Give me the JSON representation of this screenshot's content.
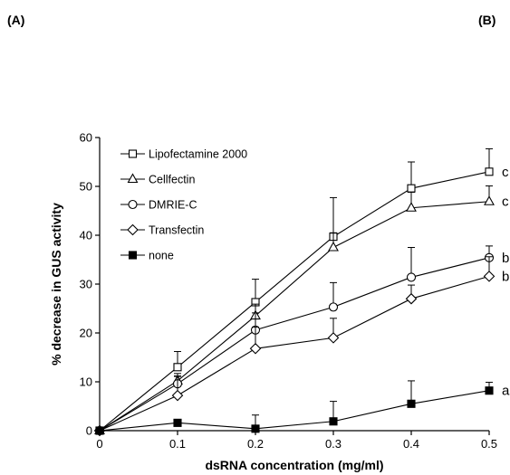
{
  "panels": {
    "left": "(A)",
    "right": "(B)"
  },
  "chart_data": {
    "type": "line",
    "title": "",
    "xlabel": "dsRNA concentration (mg/ml)",
    "ylabel": "% decrease in GUS activity",
    "x": [
      0,
      0.1,
      0.2,
      0.3,
      0.4,
      0.5
    ],
    "xlim": [
      0,
      0.5
    ],
    "ylim": [
      0,
      60
    ],
    "x_ticks": [
      "0",
      "0.1",
      "0.2",
      "0.3",
      "0.4",
      "0.5"
    ],
    "y_ticks": [
      "0",
      "10",
      "20",
      "30",
      "40",
      "50",
      "60"
    ],
    "grid": false,
    "legend_position": "top-left",
    "series": [
      {
        "name": "Lipofectamine 2000",
        "marker": "square-open",
        "color": "#000000",
        "values": [
          0,
          13,
          26.3,
          39.7,
          49.6,
          53
        ],
        "errors": [
          0,
          3.2,
          4.7,
          8,
          5.4,
          4.7
        ],
        "sig": "c"
      },
      {
        "name": "Cellfectin",
        "marker": "triangle-open",
        "color": "#000000",
        "values": [
          0,
          10.2,
          23.5,
          37.5,
          45.6,
          46.9
        ],
        "errors": [
          0,
          1.5,
          2.4,
          3,
          3.2,
          3.2
        ],
        "sig": "c"
      },
      {
        "name": "DMRIE-C",
        "marker": "circle-open",
        "color": "#000000",
        "values": [
          0,
          9.6,
          20.6,
          25.3,
          31.4,
          35.4
        ],
        "errors": [
          0,
          1.5,
          3.5,
          5,
          6.1,
          2.4
        ],
        "sig": "b"
      },
      {
        "name": "Transfectin",
        "marker": "diamond-open",
        "color": "#000000",
        "values": [
          0,
          7.2,
          16.8,
          19,
          27,
          31.6
        ],
        "errors": [
          0,
          4,
          4.4,
          4,
          2.8,
          4
        ],
        "sig": "b"
      },
      {
        "name": "none",
        "marker": "square-filled",
        "color": "#000000",
        "values": [
          0,
          1.6,
          0.4,
          1.9,
          5.5,
          8.2
        ],
        "errors": [
          0,
          0,
          2.8,
          4.1,
          4.7,
          1.7
        ],
        "sig": "a"
      }
    ]
  }
}
